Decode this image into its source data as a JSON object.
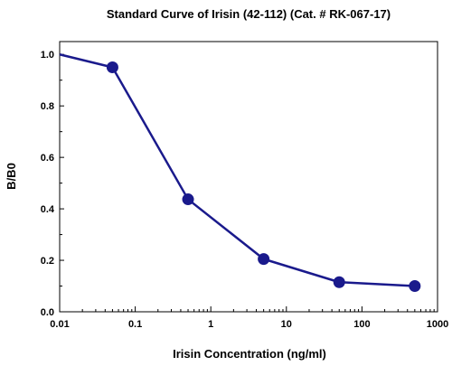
{
  "chart_data": {
    "type": "line",
    "title": "Standard Curve of Irisin  (42-112)  (Cat. # RK-067-17)",
    "xlabel": "Irisin  Concentration  (ng/ml)",
    "ylabel": "B/B0",
    "x_scale": "log",
    "xlim": [
      0.01,
      1000
    ],
    "ylim": [
      0.0,
      1.05
    ],
    "x_ticks": [
      "0.01",
      "0.1",
      "1",
      "10",
      "100",
      "1000"
    ],
    "y_ticks": [
      "0.0",
      "0.2",
      "0.4",
      "0.6",
      "0.8",
      "1.0"
    ],
    "grid": false,
    "legend": "none",
    "line_color": "#1a1a8c",
    "series": [
      {
        "x": [
          0.01,
          0.05,
          0.5,
          5,
          50,
          500
        ],
        "y": [
          1.0,
          0.95,
          0.437,
          0.205,
          0.115,
          0.1
        ],
        "markers": [
          false,
          true,
          true,
          true,
          true,
          true
        ]
      }
    ]
  }
}
